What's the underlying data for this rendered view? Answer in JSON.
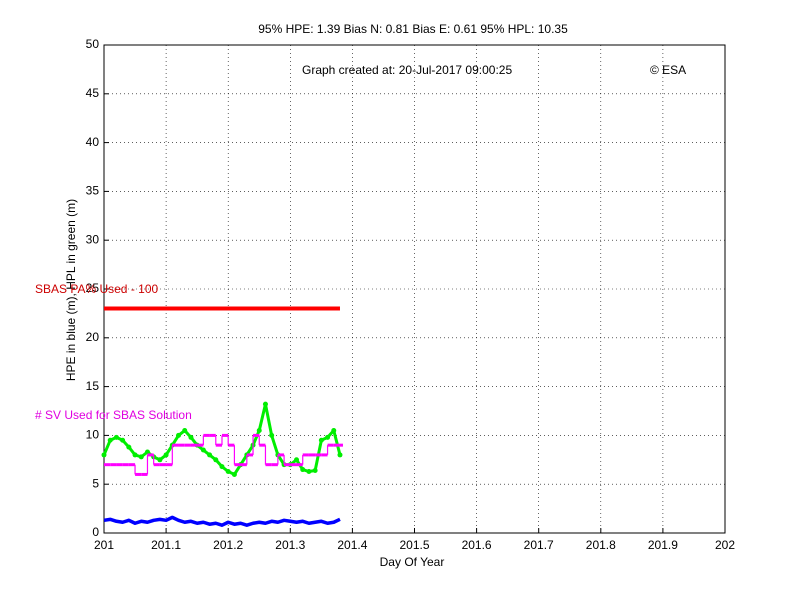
{
  "chart_data": {
    "type": "line",
    "title": "95% HPE: 1.39  Bias N: 0.81  Bias E: 0.61  95% HPL: 10.35",
    "annotation": "Graph created at: 20-Jul-2017 09:00:25",
    "credit": "© ESA",
    "pa_label": "SBAS PA% Used - 100",
    "sv_label": "# SV Used for SBAS Solution",
    "xlabel": "Day Of Year",
    "ylabel": "HPE in blue (m), HPL in green (m)",
    "xlim": [
      201,
      202
    ],
    "xticks": [
      201,
      201.1,
      201.2,
      201.3,
      201.4,
      201.5,
      201.6,
      201.7,
      201.8,
      201.9,
      202
    ],
    "ylim": [
      0,
      50
    ],
    "yticks": [
      0,
      5,
      10,
      15,
      20,
      25,
      30,
      35,
      40,
      45,
      50
    ],
    "grid": true,
    "x": [
      201,
      201.01,
      201.02,
      201.03,
      201.04,
      201.05,
      201.06,
      201.07,
      201.08,
      201.09,
      201.1,
      201.11,
      201.12,
      201.13,
      201.14,
      201.15,
      201.16,
      201.17,
      201.18,
      201.19,
      201.2,
      201.21,
      201.22,
      201.23,
      201.24,
      201.25,
      201.26,
      201.27,
      201.28,
      201.29,
      201.3,
      201.31,
      201.32,
      201.33,
      201.34,
      201.35,
      201.36,
      201.37,
      201.38
    ],
    "series": [
      {
        "color": "#ff0000",
        "style": "line",
        "values": [
          23,
          23,
          23,
          23,
          23,
          23,
          23,
          23,
          23,
          23,
          23,
          23,
          23,
          23,
          23,
          23,
          23,
          23,
          23,
          23,
          23,
          23,
          23,
          23,
          23,
          23,
          23,
          23,
          23,
          23,
          23,
          23,
          23,
          23,
          23,
          23,
          23,
          23,
          23
        ]
      },
      {
        "color": "#00ee00",
        "style": "marked",
        "values": [
          8,
          9.5,
          9.8,
          9.5,
          8.8,
          8,
          7.8,
          8.3,
          7.8,
          7.5,
          8,
          9,
          10,
          10.5,
          9.8,
          9,
          8.5,
          8,
          7.5,
          6.8,
          6.3,
          6,
          7,
          8,
          9,
          10.5,
          13.2,
          10,
          8,
          7,
          7,
          7.5,
          6.5,
          6.3,
          6.4,
          9.5,
          9.8,
          10.5,
          8
        ]
      },
      {
        "color": "#0000ff",
        "style": "line",
        "values": [
          1.3,
          1.4,
          1.2,
          1.1,
          1.3,
          1,
          1.2,
          1.1,
          1.3,
          1.4,
          1.3,
          1.6,
          1.3,
          1.1,
          1.2,
          1,
          1.1,
          0.9,
          1,
          0.8,
          1.1,
          0.9,
          1,
          0.8,
          1,
          1.1,
          1,
          1.2,
          1.1,
          1.3,
          1.2,
          1.1,
          1.2,
          1,
          1.1,
          1.2,
          1,
          1.1,
          1.4
        ]
      },
      {
        "color": "#ff00ff",
        "style": "step",
        "values": [
          7,
          7,
          7,
          7,
          7,
          6,
          6,
          8,
          7,
          7,
          7,
          9,
          9,
          9,
          9,
          9,
          10,
          10,
          9,
          10,
          9,
          7,
          7,
          8,
          10,
          9,
          7,
          7,
          8,
          7,
          7,
          7,
          8,
          8,
          8,
          8,
          9,
          9,
          9
        ]
      }
    ]
  }
}
